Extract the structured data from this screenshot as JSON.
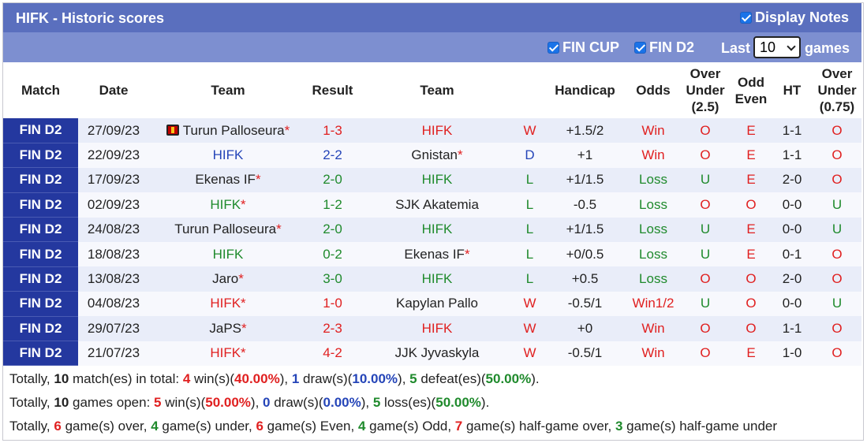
{
  "title": "HIFK - Historic scores",
  "display_notes_label": "Display Notes",
  "filters": {
    "fin_cup_label": "FIN CUP",
    "fin_d2_label": "FIN D2",
    "last_label": "Last",
    "games_value": "10",
    "games_label": "games"
  },
  "headers": {
    "match": "Match",
    "date": "Date",
    "team1": "Team",
    "result": "Result",
    "team2": "Team",
    "handicap": "Handicap",
    "odds": "Odds",
    "over_under_1": "Over",
    "over_under_2": "Under",
    "over_under_3": "(2.5)",
    "odd_even_1": "Odd",
    "odd_even_2": "Even",
    "ht": "HT",
    "ou075_1": "Over",
    "ou075_2": "Under",
    "ou075_3": "(0.75)"
  },
  "rows": [
    {
      "match": "FIN D2",
      "date": "27/09/23",
      "home": "Turun Palloseura",
      "home_star": "*",
      "home_flag": true,
      "score_h": "1",
      "score_a": "3",
      "away": "HIFK",
      "away_star": "",
      "res": "W",
      "handicap": "+1.5/2",
      "odds": "Win",
      "ou": "O",
      "oe": "E",
      "ht": "1-1",
      "ou075": "O"
    },
    {
      "match": "FIN D2",
      "date": "22/09/23",
      "home": "HIFK",
      "home_star": "",
      "home_flag": false,
      "score_h": "2",
      "score_a": "2",
      "away": "Gnistan",
      "away_star": "*",
      "res": "D",
      "handicap": "+1",
      "odds": "Win",
      "ou": "O",
      "oe": "E",
      "ht": "1-1",
      "ou075": "O"
    },
    {
      "match": "FIN D2",
      "date": "17/09/23",
      "home": "Ekenas IF",
      "home_star": "*",
      "home_flag": false,
      "score_h": "2",
      "score_a": "0",
      "away": "HIFK",
      "away_star": "",
      "res": "L",
      "handicap": "+1/1.5",
      "odds": "Loss",
      "ou": "U",
      "oe": "E",
      "ht": "2-0",
      "ou075": "O"
    },
    {
      "match": "FIN D2",
      "date": "02/09/23",
      "home": "HIFK",
      "home_star": "*",
      "home_flag": false,
      "score_h": "1",
      "score_a": "2",
      "away": "SJK Akatemia",
      "away_star": "",
      "res": "L",
      "handicap": "-0.5",
      "odds": "Loss",
      "ou": "O",
      "oe": "O",
      "ht": "0-0",
      "ou075": "U"
    },
    {
      "match": "FIN D2",
      "date": "24/08/23",
      "home": "Turun Palloseura",
      "home_star": "*",
      "home_flag": false,
      "score_h": "2",
      "score_a": "0",
      "away": "HIFK",
      "away_star": "",
      "res": "L",
      "handicap": "+1/1.5",
      "odds": "Loss",
      "ou": "U",
      "oe": "E",
      "ht": "0-0",
      "ou075": "U"
    },
    {
      "match": "FIN D2",
      "date": "18/08/23",
      "home": "HIFK",
      "home_star": "",
      "home_flag": false,
      "score_h": "0",
      "score_a": "2",
      "away": "Ekenas IF",
      "away_star": "*",
      "res": "L",
      "handicap": "+0/0.5",
      "odds": "Loss",
      "ou": "U",
      "oe": "E",
      "ht": "0-1",
      "ou075": "O"
    },
    {
      "match": "FIN D2",
      "date": "13/08/23",
      "home": "Jaro",
      "home_star": "*",
      "home_flag": false,
      "score_h": "3",
      "score_a": "0",
      "away": "HIFK",
      "away_star": "",
      "res": "L",
      "handicap": "+0.5",
      "odds": "Loss",
      "ou": "O",
      "oe": "O",
      "ht": "2-0",
      "ou075": "O"
    },
    {
      "match": "FIN D2",
      "date": "04/08/23",
      "home": "HIFK",
      "home_star": "*",
      "home_flag": false,
      "score_h": "1",
      "score_a": "0",
      "away": "Kapylan Pallo",
      "away_star": "",
      "res": "W",
      "handicap": "-0.5/1",
      "odds": "Win1/2",
      "ou": "U",
      "oe": "O",
      "ht": "0-0",
      "ou075": "U"
    },
    {
      "match": "FIN D2",
      "date": "29/07/23",
      "home": "JaPS",
      "home_star": "*",
      "home_flag": false,
      "score_h": "2",
      "score_a": "3",
      "away": "HIFK",
      "away_star": "",
      "res": "W",
      "handicap": "+0",
      "odds": "Win",
      "ou": "O",
      "oe": "O",
      "ht": "1-1",
      "ou075": "O"
    },
    {
      "match": "FIN D2",
      "date": "21/07/23",
      "home": "HIFK",
      "home_star": "*",
      "home_flag": false,
      "score_h": "4",
      "score_a": "2",
      "away": "JJK Jyvaskyla",
      "away_star": "",
      "res": "W",
      "handicap": "-0.5/1",
      "odds": "Win",
      "ou": "O",
      "oe": "E",
      "ht": "1-0",
      "ou075": "O"
    }
  ],
  "summary": {
    "line1": {
      "a": "Totally, ",
      "n": "10",
      "b": " match(es) in total: ",
      "w": "4",
      "c": " win(s)(",
      "wp": "40.00%",
      "d": "), ",
      "dr": "1",
      "e": " draw(s)(",
      "dp": "10.00%",
      "f": "), ",
      "l": "5",
      "g": " defeat(es)(",
      "lp": "50.00%",
      "h": ")."
    },
    "line2": {
      "a": "Totally, ",
      "n": "10",
      "b": " games open: ",
      "w": "5",
      "c": " win(s)(",
      "wp": "50.00%",
      "d": "), ",
      "dr": "0",
      "e": " draw(s)(",
      "dp": "0.00%",
      "f": "), ",
      "l": "5",
      "g": " loss(es)(",
      "lp": "50.00%",
      "h": ")."
    },
    "line3": {
      "a": "Totally, ",
      "o": "6",
      "b": " game(s) over, ",
      "u": "4",
      "c": " game(s) under, ",
      "ev": "6",
      "d": " game(s) Even, ",
      "od": "4",
      "e": " game(s) Odd, ",
      "ho": "7",
      "f": " game(s) half-game over, ",
      "hu": "3",
      "g": " game(s) half-game under"
    }
  },
  "colors": {
    "title_bar": "#5a6fbe",
    "filter_bar": "#7d8fd0",
    "match_cell": "#24389f",
    "win": "#e02020",
    "draw": "#2545b8",
    "loss": "#1f8a2c"
  }
}
